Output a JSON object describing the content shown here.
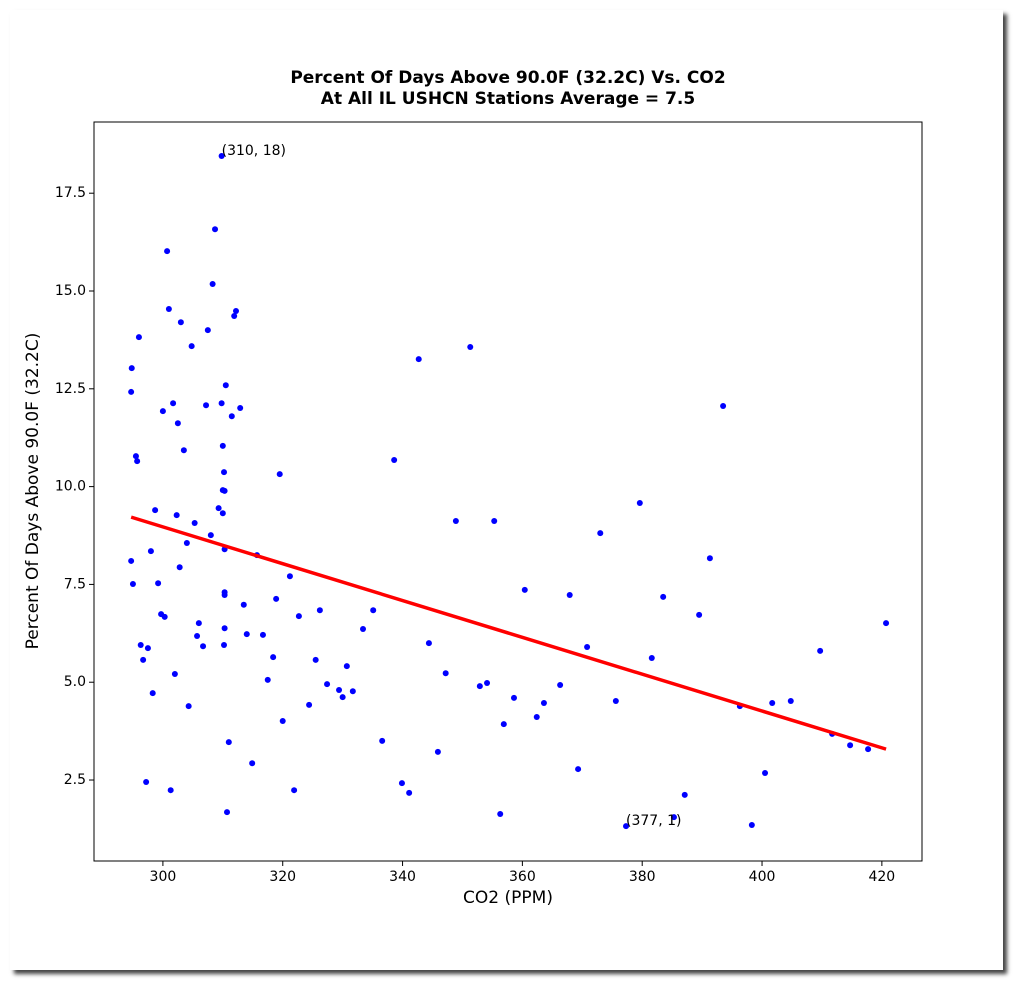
{
  "chart_data": {
    "type": "scatter",
    "title": "Percent Of Days Above 90.0F (32.2C) Vs. CO2",
    "subtitle": "At All IL USHCN Stations Average = 7.5",
    "xlabel": "CO2 (PPM)",
    "ylabel": "Percent Of Days Above 90.0F (32.2C)",
    "xlim": [
      288.5,
      426.7
    ],
    "ylim": [
      0.43,
      19.32
    ],
    "xticks": [
      300,
      320,
      340,
      360,
      380,
      400,
      420
    ],
    "yticks": [
      2.5,
      {
        "value": 5,
        "label": "5.0"
      },
      7.5,
      {
        "value": 10,
        "label": "10.0"
      },
      12.5,
      {
        "value": 15,
        "label": "15.0"
      },
      17.5
    ],
    "color": "#0000ff",
    "x": [
      294.8,
      294.7,
      295.5,
      295.7,
      296.0,
      294.7,
      295.0,
      296.3,
      296.7,
      297.2,
      297.5,
      298.0,
      298.3,
      298.7,
      299.2,
      299.7,
      300.0,
      300.3,
      300.7,
      301.0,
      301.3,
      301.7,
      302.0,
      302.3,
      302.5,
      302.8,
      303.0,
      303.5,
      304.0,
      304.3,
      304.8,
      305.3,
      305.7,
      306.0,
      306.7,
      307.2,
      307.5,
      308.0,
      308.3,
      308.7,
      309.3,
      309.8,
      309.8,
      310.0,
      310.0,
      310.0,
      310.2,
      310.3,
      310.3,
      310.3,
      310.3,
      310.3,
      310.2,
      310.5,
      310.7,
      311.0,
      311.5,
      311.9,
      312.2,
      312.9,
      313.5,
      314.0,
      314.9,
      315.7,
      316.7,
      317.5,
      318.4,
      318.9,
      319.5,
      320.0,
      321.2,
      321.9,
      322.7,
      324.4,
      325.5,
      326.2,
      327.4,
      329.4,
      330.0,
      330.7,
      331.7,
      333.4,
      335.1,
      336.6,
      338.6,
      339.9,
      341.1,
      342.7,
      344.4,
      345.9,
      347.2,
      348.9,
      351.3,
      352.9,
      354.1,
      355.3,
      356.3,
      356.9,
      358.6,
      360.4,
      362.4,
      363.6,
      366.3,
      367.9,
      369.3,
      370.8,
      373.0,
      375.6,
      377.3,
      379.6,
      381.6,
      383.5,
      385.3,
      387.1,
      389.5,
      391.3,
      393.5,
      396.3,
      398.3,
      400.5,
      401.7,
      404.8,
      409.7,
      411.7,
      414.7,
      417.7,
      420.7
    ],
    "values": [
      13.03,
      12.42,
      10.78,
      10.65,
      13.82,
      8.1,
      7.51,
      5.95,
      5.57,
      2.45,
      5.87,
      8.35,
      4.72,
      9.4,
      7.53,
      6.74,
      11.93,
      6.67,
      16.02,
      14.54,
      2.24,
      12.13,
      5.21,
      9.27,
      11.62,
      7.94,
      14.2,
      10.93,
      8.56,
      4.39,
      13.59,
      9.07,
      6.18,
      6.51,
      5.92,
      12.08,
      14.0,
      8.76,
      15.18,
      16.58,
      9.45,
      18.45,
      12.13,
      9.32,
      9.91,
      11.04,
      10.37,
      9.89,
      8.4,
      7.3,
      7.23,
      6.38,
      5.95,
      12.59,
      1.68,
      3.47,
      11.8,
      14.36,
      14.49,
      12.01,
      6.98,
      6.23,
      2.93,
      8.25,
      6.21,
      5.06,
      5.64,
      7.13,
      10.32,
      4.01,
      7.71,
      2.24,
      6.69,
      4.42,
      5.57,
      6.84,
      4.95,
      4.8,
      4.62,
      5.41,
      4.77,
      6.36,
      6.84,
      3.5,
      10.68,
      2.42,
      2.17,
      13.26,
      6.0,
      3.22,
      5.23,
      9.12,
      13.57,
      4.9,
      4.98,
      9.12,
      1.63,
      3.93,
      4.6,
      7.36,
      4.11,
      4.47,
      4.93,
      7.23,
      2.78,
      5.9,
      8.81,
      4.52,
      1.32,
      9.58,
      5.62,
      7.18,
      1.55,
      2.12,
      6.72,
      8.17,
      12.06,
      4.39,
      1.35,
      2.68,
      4.47,
      4.52,
      5.8,
      3.68,
      3.39,
      3.29,
      6.51
    ],
    "fit": {
      "x": [
        294.7,
        420.7
      ],
      "values": [
        9.22,
        3.29
      ],
      "color": "#ff0000"
    },
    "annotations": [
      {
        "text": "(310, 18)",
        "x": 309.8,
        "y": 18.45
      },
      {
        "text": "(377, 1)",
        "x": 377.3,
        "y": 1.32
      }
    ]
  }
}
